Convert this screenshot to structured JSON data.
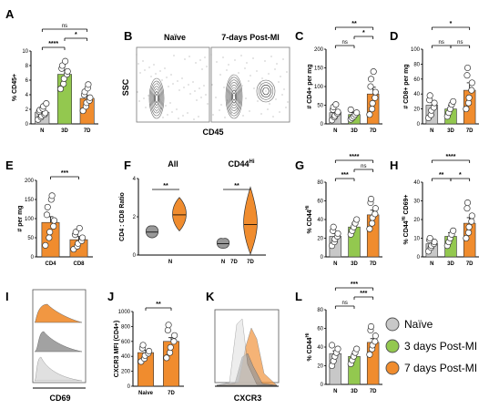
{
  "colors": {
    "naive": "#c8c8c8",
    "post3d": "#93c84f",
    "post7d": "#f08c2e",
    "dark": "#555555"
  },
  "legend": [
    {
      "name": "Naïve",
      "color": "#c8c8c8"
    },
    {
      "name": "3 days Post-MI",
      "color": "#93c84f"
    },
    {
      "name": "7 days Post-MI",
      "color": "#f08c2e"
    }
  ],
  "flow_B": {
    "label": "B",
    "titles": [
      "Naïve",
      "7-days Post-MI"
    ],
    "ylabel": "SSC",
    "xlabel": "CD45"
  },
  "panel_F_titles": [
    "All",
    "CD44"
  ],
  "panel_F_title_sup": "Hi",
  "hist_I": {
    "label": "I",
    "xlabel": "CD69"
  },
  "hist_K": {
    "label": "K",
    "xlabel": "CXCR3"
  },
  "chart_data": [
    {
      "id": "A",
      "type": "bar",
      "ylabel": "% CD45+",
      "categories": [
        "N",
        "3D",
        "7D"
      ],
      "ylim": [
        0,
        10
      ],
      "yticks": [
        "0",
        "2",
        "4",
        "6",
        "8",
        "10"
      ],
      "tick_values": [
        0,
        2,
        4,
        6,
        8,
        10
      ],
      "values": [
        1.6,
        6.8,
        3.5
      ],
      "errors": [
        0.3,
        0.6,
        0.4
      ],
      "points": [
        [
          0.6,
          0.9,
          1.1,
          1.3,
          1.5,
          1.7,
          1.9,
          2.1,
          2.4,
          2.8
        ],
        [
          4.8,
          5.5,
          6.2,
          6.8,
          7.2,
          7.6,
          8.0,
          8.6
        ],
        [
          1.8,
          2.4,
          2.9,
          3.2,
          3.6,
          4.0,
          4.4,
          4.9,
          5.4
        ]
      ],
      "sig": [
        {
          "from": 0,
          "to": 2,
          "text": "ns",
          "level": 2
        },
        {
          "from": 1,
          "to": 2,
          "text": "*",
          "level": 1
        },
        {
          "from": 0,
          "to": 1,
          "text": "****",
          "level": 0
        }
      ]
    },
    {
      "id": "C",
      "type": "bar",
      "ylabel": "# CD4+ per mg",
      "categories": [
        "N",
        "3D",
        "7D"
      ],
      "ylim": [
        0,
        200
      ],
      "yticks": [
        "0",
        "50",
        "100",
        "150",
        "200"
      ],
      "tick_values": [
        0,
        50,
        100,
        150,
        200
      ],
      "values": [
        30,
        25,
        80
      ],
      "errors": [
        5,
        5,
        18
      ],
      "points": [
        [
          10,
          18,
          22,
          28,
          32,
          38,
          45,
          52
        ],
        [
          12,
          16,
          20,
          25,
          30,
          38
        ],
        [
          25,
          40,
          55,
          70,
          85,
          100,
          120,
          140
        ]
      ],
      "sig": [
        {
          "from": 0,
          "to": 2,
          "text": "**",
          "level": 2
        },
        {
          "from": 0,
          "to": 1,
          "text": "ns",
          "level": 0
        },
        {
          "from": 1,
          "to": 2,
          "text": "*",
          "level": 1
        }
      ]
    },
    {
      "id": "D",
      "type": "bar",
      "ylabel": "# CD8+ per mg",
      "categories": [
        "N",
        "3D",
        "7D"
      ],
      "ylim": [
        0,
        100
      ],
      "yticks": [
        "0",
        "20",
        "40",
        "60",
        "80",
        "100"
      ],
      "tick_values": [
        0,
        20,
        40,
        60,
        80,
        100
      ],
      "values": [
        25,
        20,
        45
      ],
      "errors": [
        5,
        5,
        10
      ],
      "points": [
        [
          8,
          12,
          18,
          22,
          28,
          32,
          38
        ],
        [
          10,
          15,
          20,
          26,
          30
        ],
        [
          20,
          28,
          35,
          45,
          55,
          65,
          75
        ]
      ],
      "sig": [
        {
          "from": 0,
          "to": 2,
          "text": "*",
          "level": 2
        },
        {
          "from": 0,
          "to": 1,
          "text": "ns",
          "level": 0
        },
        {
          "from": 1,
          "to": 2,
          "text": "ns",
          "level": 0
        }
      ]
    },
    {
      "id": "E",
      "type": "bar",
      "ylabel": "# per mg",
      "categories": [
        "CD4",
        "CD8"
      ],
      "ylim": [
        0,
        200
      ],
      "yticks": [
        "0",
        "50",
        "100",
        "150",
        "200"
      ],
      "tick_values": [
        0,
        50,
        100,
        150,
        200
      ],
      "values": [
        90,
        45
      ],
      "errors": [
        15,
        8
      ],
      "points": [
        [
          30,
          50,
          65,
          80,
          95,
          110,
          130,
          150,
          160
        ],
        [
          20,
          28,
          35,
          42,
          50,
          58,
          65,
          75
        ]
      ],
      "sig": [
        {
          "from": 0,
          "to": 1,
          "text": "***",
          "level": 0
        }
      ]
    },
    {
      "id": "F",
      "type": "violin",
      "ylabel": "CD4 : CD8 Ratio",
      "categories": [
        "N",
        "7D"
      ],
      "ylim": [
        0,
        4
      ],
      "yticks": [
        "0",
        "2",
        "4"
      ],
      "tick_values": [
        0,
        2,
        4
      ],
      "sig": [
        {
          "from": 0,
          "to": 1,
          "text": "**",
          "level": 0
        }
      ]
    },
    {
      "id": "G",
      "type": "bar",
      "ylabel": "% CD44",
      "categories": [
        "N",
        "3D",
        "7D"
      ],
      "ylim": [
        0,
        80
      ],
      "yticks": [
        "0",
        "20",
        "40",
        "60",
        "80"
      ],
      "tick_values": [
        0,
        20,
        40,
        60,
        80
      ],
      "values": [
        22,
        32,
        45
      ],
      "errors": [
        3,
        4,
        5
      ],
      "points": [
        [
          12,
          16,
          19,
          22,
          25,
          28,
          32
        ],
        [
          24,
          28,
          32,
          36,
          40
        ],
        [
          30,
          36,
          42,
          46,
          52,
          58,
          62
        ]
      ],
      "sig": [
        {
          "from": 0,
          "to": 2,
          "text": "****",
          "level": 2
        },
        {
          "from": 1,
          "to": 2,
          "text": "ns",
          "level": 1
        },
        {
          "from": 0,
          "to": 1,
          "text": "***",
          "level": 0
        }
      ]
    },
    {
      "id": "H",
      "type": "bar",
      "ylabel": "% CD44 CD69+",
      "categories": [
        "N",
        "3D",
        "7D"
      ],
      "ylim": [
        0,
        40
      ],
      "yticks": [
        "0",
        "10",
        "20",
        "30",
        "40"
      ],
      "tick_values": [
        0,
        10,
        20,
        30,
        40
      ],
      "values": [
        7,
        11,
        18
      ],
      "errors": [
        1.5,
        2,
        3
      ],
      "points": [
        [
          3,
          5,
          6,
          7,
          8,
          9,
          10
        ],
        [
          6,
          8,
          10,
          12,
          14
        ],
        [
          10,
          13,
          16,
          19,
          22,
          26,
          29
        ]
      ],
      "sig": [
        {
          "from": 0,
          "to": 2,
          "text": "****",
          "level": 2
        },
        {
          "from": 0,
          "to": 1,
          "text": "**",
          "level": 0
        },
        {
          "from": 1,
          "to": 2,
          "text": "*",
          "level": 0
        }
      ]
    },
    {
      "id": "J",
      "type": "bar",
      "ylabel": "CXCR3 MFI (CD4+)",
      "categories": [
        "Naive",
        "7D"
      ],
      "ylim": [
        0,
        1000
      ],
      "yticks": [
        "0",
        "200",
        "400",
        "600",
        "800",
        "1000"
      ],
      "tick_values": [
        0,
        200,
        400,
        600,
        800,
        1000
      ],
      "values": [
        450,
        600
      ],
      "errors": [
        30,
        50
      ],
      "points": [
        [
          330,
          370,
          410,
          440,
          470,
          510,
          550
        ],
        [
          380,
          450,
          520,
          600,
          680,
          750,
          820
        ]
      ],
      "sig": [
        {
          "from": 0,
          "to": 1,
          "text": "**",
          "level": 0
        }
      ]
    },
    {
      "id": "L",
      "type": "bar",
      "ylabel": "% CD44",
      "categories": [
        "N",
        "3D",
        "7D"
      ],
      "ylim": [
        0,
        80
      ],
      "yticks": [
        "0",
        "20",
        "40",
        "60",
        "80"
      ],
      "tick_values": [
        0,
        20,
        40,
        60,
        80
      ],
      "values": [
        33,
        30,
        45
      ],
      "errors": [
        3,
        3,
        4
      ],
      "points": [
        [
          20,
          25,
          30,
          34,
          38,
          42
        ],
        [
          22,
          26,
          30,
          34,
          38
        ],
        [
          32,
          38,
          42,
          46,
          52,
          58,
          62
        ]
      ],
      "sig": [
        {
          "from": 0,
          "to": 2,
          "text": "***",
          "level": 2
        },
        {
          "from": 1,
          "to": 2,
          "text": "***",
          "level": 1
        },
        {
          "from": 0,
          "to": 1,
          "text": "ns",
          "level": 0
        }
      ]
    }
  ]
}
